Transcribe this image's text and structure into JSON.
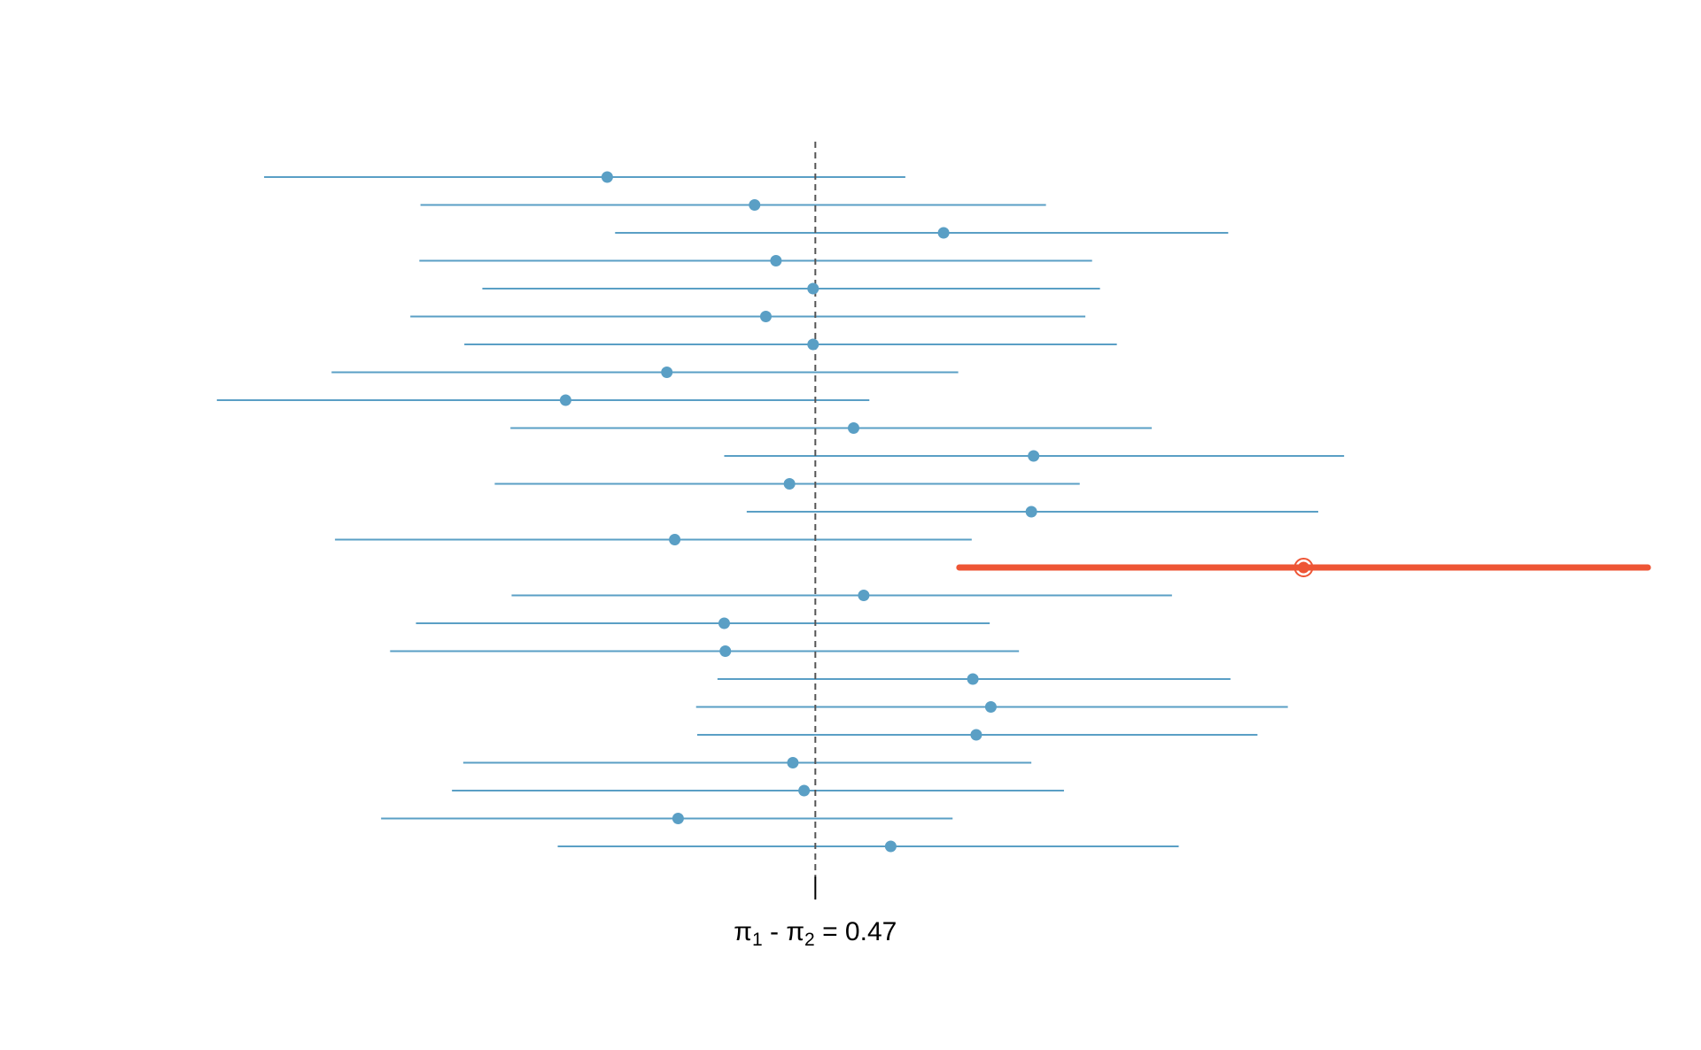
{
  "chart_data": {
    "type": "interval",
    "title": "",
    "reference_line": {
      "label_parts": [
        "π",
        "1",
        " - π",
        "2",
        " = 0.47"
      ],
      "value": 0.47,
      "style": "dashed"
    },
    "x_range": [
      -0.05,
      1.21
    ],
    "series": [
      {
        "points": [
          {
            "estimate": 0.285,
            "lower": -0.02,
            "upper": 0.55,
            "captures": true
          },
          {
            "estimate": 0.416,
            "lower": 0.119,
            "upper": 0.675,
            "captures": true
          },
          {
            "estimate": 0.584,
            "lower": 0.292,
            "upper": 0.837,
            "captures": true
          },
          {
            "estimate": 0.435,
            "lower": 0.118,
            "upper": 0.716,
            "captures": true
          },
          {
            "estimate": 0.468,
            "lower": 0.174,
            "upper": 0.723,
            "captures": true
          },
          {
            "estimate": 0.426,
            "lower": 0.11,
            "upper": 0.71,
            "captures": true
          },
          {
            "estimate": 0.468,
            "lower": 0.158,
            "upper": 0.738,
            "captures": true
          },
          {
            "estimate": 0.338,
            "lower": 0.04,
            "upper": 0.597,
            "captures": true
          },
          {
            "estimate": 0.248,
            "lower": -0.062,
            "upper": 0.518,
            "captures": true
          },
          {
            "estimate": 0.504,
            "lower": 0.199,
            "upper": 0.769,
            "captures": true
          },
          {
            "estimate": 0.664,
            "lower": 0.389,
            "upper": 0.94,
            "captures": true
          },
          {
            "estimate": 0.447,
            "lower": 0.185,
            "upper": 0.705,
            "captures": true
          },
          {
            "estimate": 0.662,
            "lower": 0.409,
            "upper": 0.917,
            "captures": true
          },
          {
            "estimate": 0.345,
            "lower": 0.043,
            "upper": 0.609,
            "captures": true
          },
          {
            "estimate": 0.904,
            "lower": 0.598,
            "upper": 1.21,
            "captures": false
          },
          {
            "estimate": 0.513,
            "lower": 0.2,
            "upper": 0.787,
            "captures": true
          },
          {
            "estimate": 0.389,
            "lower": 0.115,
            "upper": 0.625,
            "captures": true
          },
          {
            "estimate": 0.39,
            "lower": 0.092,
            "upper": 0.651,
            "captures": true
          },
          {
            "estimate": 0.61,
            "lower": 0.383,
            "upper": 0.839,
            "captures": true
          },
          {
            "estimate": 0.626,
            "lower": 0.364,
            "upper": 0.89,
            "captures": true
          },
          {
            "estimate": 0.613,
            "lower": 0.365,
            "upper": 0.863,
            "captures": true
          },
          {
            "estimate": 0.45,
            "lower": 0.157,
            "upper": 0.662,
            "captures": true
          },
          {
            "estimate": 0.46,
            "lower": 0.147,
            "upper": 0.691,
            "captures": true
          },
          {
            "estimate": 0.348,
            "lower": 0.084,
            "upper": 0.592,
            "captures": true
          },
          {
            "estimate": 0.537,
            "lower": 0.241,
            "upper": 0.793,
            "captures": true
          }
        ]
      }
    ],
    "grid": false,
    "legend": "none"
  },
  "colors": {
    "interval": "#5a9fc5",
    "miss": "#ee5535",
    "reference": "#555555",
    "tick": "#000000"
  }
}
